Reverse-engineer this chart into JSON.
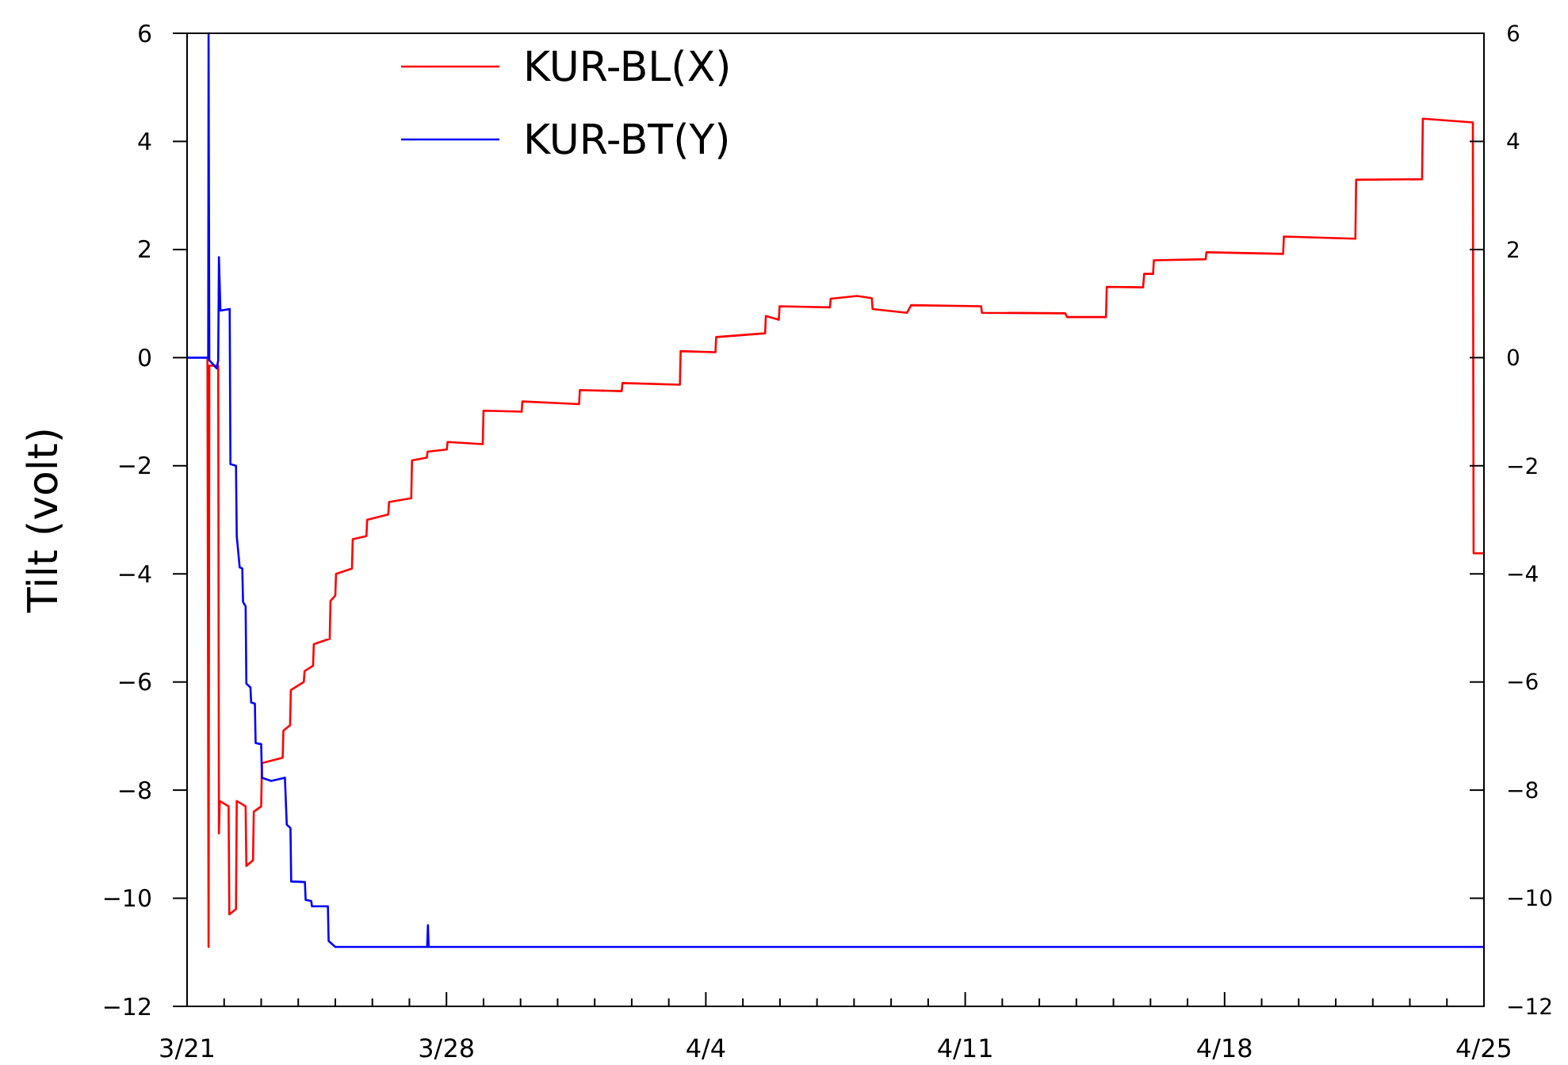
{
  "chart_data": {
    "type": "line",
    "ylabel": "Tilt (volt)",
    "legend": "top left",
    "grid": false,
    "marker": "none",
    "line_style": "solid",
    "xlim": [
      "--03-21",
      "--04-25"
    ],
    "ylim": [
      -12,
      6
    ],
    "y2lim": [
      -12,
      6
    ],
    "xticks": [
      {
        "value": "--03-21",
        "label": "3/21"
      },
      {
        "value": "--03-22",
        "label": null
      },
      {
        "value": "--03-23",
        "label": null
      },
      {
        "value": "--03-24",
        "label": null
      },
      {
        "value": "--03-25",
        "label": null
      },
      {
        "value": "--03-26",
        "label": null
      },
      {
        "value": "--03-27",
        "label": null
      },
      {
        "value": "--03-28",
        "label": "3/28"
      },
      {
        "value": "--03-29",
        "label": null
      },
      {
        "value": "--03-30",
        "label": null
      },
      {
        "value": "--03-31",
        "label": null
      },
      {
        "value": "--04-01",
        "label": null
      },
      {
        "value": "--04-02",
        "label": null
      },
      {
        "value": "--04-03",
        "label": null
      },
      {
        "value": "--04-04",
        "label": "4/4"
      },
      {
        "value": "--04-05",
        "label": null
      },
      {
        "value": "--04-06",
        "label": null
      },
      {
        "value": "--04-07",
        "label": null
      },
      {
        "value": "--04-08",
        "label": null
      },
      {
        "value": "--04-09",
        "label": null
      },
      {
        "value": "--04-10",
        "label": null
      },
      {
        "value": "--04-11",
        "label": "4/11"
      },
      {
        "value": "--04-12",
        "label": null
      },
      {
        "value": "--04-13",
        "label": null
      },
      {
        "value": "--04-14",
        "label": null
      },
      {
        "value": "--04-15",
        "label": null
      },
      {
        "value": "--04-16",
        "label": null
      },
      {
        "value": "--04-17",
        "label": null
      },
      {
        "value": "--04-18",
        "label": "4/18"
      },
      {
        "value": "--04-19",
        "label": null
      },
      {
        "value": "--04-20",
        "label": null
      },
      {
        "value": "--04-21",
        "label": null
      },
      {
        "value": "--04-22",
        "label": null
      },
      {
        "value": "--04-23",
        "label": null
      },
      {
        "value": "--04-24",
        "label": null
      },
      {
        "value": "--04-25",
        "label": "4/25"
      }
    ],
    "yticks": [
      -12,
      -10,
      -8,
      -6,
      -4,
      -2,
      0,
      2,
      4,
      6
    ],
    "y2ticks": [
      -12,
      -10,
      -8,
      -6,
      -4,
      -2,
      0,
      2,
      4,
      6
    ],
    "series": [
      {
        "name": "KUR-BL(X)",
        "color": "#ff0000",
        "x": [
          "--03-21T13:12",
          "--03-21T13:55",
          "--03-21T14:24",
          "--03-21T20:10",
          "--03-21T20:38",
          "--03-21T21:07",
          "--03-22T02:53",
          "--03-22T03:22",
          "--03-22T07:41",
          "--03-22T08:10",
          "--03-22T13:55",
          "--03-22T14:24",
          "--03-22T18:43",
          "--03-22T19:12",
          "--03-23T00:00",
          "--03-23T00:29",
          "--03-23T13:55",
          "--03-23T14:24",
          "--03-23T18:43",
          "--03-23T19:12",
          "--03-24T03:36",
          "--03-24T04:05",
          "--03-24T09:36",
          "--03-24T10:05",
          "--03-24T20:24",
          "--03-24T20:53",
          "--03-25T00:00",
          "--03-25T00:29",
          "--03-25T10:48",
          "--03-25T11:17",
          "--03-25T20:10",
          "--03-25T20:38",
          "--03-26T10:19",
          "--03-26T10:48",
          "--03-27T01:12",
          "--03-27T01:41",
          "--03-27T11:17",
          "--03-27T11:46",
          "--03-28T00:14",
          "--03-28T00:43",
          "--03-28T23:31",
          "--03-29T00:00",
          "--03-30T00:43",
          "--03-30T01:12",
          "--03-31T13:55",
          "--03-31T14:24",
          "--04-01T17:31",
          "--04-01T18:00",
          "--04-03T07:12",
          "--04-03T07:41",
          "--04-04T06:14",
          "--04-04T06:43",
          "--04-05T14:24",
          "--04-05T14:53",
          "--04-05T23:17",
          "--04-05T23:46",
          "--04-07T08:24",
          "--04-07T08:53",
          "--04-08T01:55",
          "--04-08T11:31",
          "--04-08T12:00",
          "--04-09T10:19",
          "--04-09T12:58",
          "--04-11T10:19",
          "--04-11T10:48",
          "--04-13T16:48",
          "--04-13T18:00",
          "--04-14T19:12",
          "--04-14T19:41",
          "--04-15T19:12",
          "--04-15T19:55",
          "--04-16T01:41",
          "--04-16T02:10",
          "--04-17T11:46",
          "--04-17T12:14",
          "--04-19T13:55",
          "--04-19T14:24",
          "--04-21T12:43",
          "--04-21T13:12",
          "--04-23T07:55",
          "--04-23T08:24",
          "--04-24T16:48",
          "--04-24T17:17",
          "--04-25T00:00"
        ],
        "values": [
          0,
          -10.9,
          -0.15,
          -0.15,
          -8.8,
          -8.2,
          -8.3,
          -10.3,
          -10.2,
          -8.2,
          -8.3,
          -9.4,
          -9.3,
          -8.4,
          -8.3,
          -7.5,
          -7.4,
          -6.9,
          -6.8,
          -6.15,
          -6.0,
          -5.8,
          -5.7,
          -5.3,
          -5.2,
          -4.5,
          -4.4,
          -4.0,
          -3.9,
          -3.36,
          -3.3,
          -3.0,
          -2.9,
          -2.67,
          -2.6,
          -1.9,
          -1.85,
          -1.74,
          -1.7,
          -1.56,
          -1.6,
          -0.98,
          -1.0,
          -0.81,
          -0.86,
          -0.6,
          -0.62,
          -0.47,
          -0.5,
          0.12,
          0.1,
          0.38,
          0.45,
          0.77,
          0.7,
          0.95,
          0.93,
          1.09,
          1.14,
          1.1,
          0.9,
          0.83,
          0.97,
          0.95,
          0.83,
          0.82,
          0.75,
          0.75,
          1.31,
          1.3,
          1.55,
          1.55,
          1.8,
          1.82,
          1.95,
          1.92,
          2.24,
          2.2,
          3.29,
          3.3,
          4.42,
          4.35,
          -3.62,
          -3.62
        ]
      },
      {
        "name": "KUR-BT(Y)",
        "color": "#0000ff",
        "x": [
          "--03-21T00:00",
          "--03-21T13:41",
          "--03-21T13:55",
          "--03-21T14:24",
          "--03-21T19:12",
          "--03-21T20:10",
          "--03-21T20:38",
          "--03-21T21:36",
          "--03-22T03:36",
          "--03-22T04:05",
          "--03-22T07:41",
          "--03-22T08:10",
          "--03-22T10:05",
          "--03-22T11:46",
          "--03-22T12:14",
          "--03-22T13:55",
          "--03-22T14:24",
          "--03-22T17:02",
          "--03-22T17:31",
          "--03-22T19:55",
          "--03-22T20:24",
          "--03-23T00:00",
          "--03-23T00:29",
          "--03-23T06:29",
          "--03-23T15:22",
          "--03-23T16:34",
          "--03-23T18:58",
          "--03-23T19:26",
          "--03-24T04:19",
          "--03-24T04:48",
          "--03-24T08:24",
          "--03-24T08:53",
          "--03-24T19:12",
          "--03-24T19:41",
          "--03-25T00:00",
          "--03-27T11:31",
          "--03-27T12:00",
          "--03-27T12:29",
          "--04-25T00:00"
        ],
        "values": [
          0,
          0,
          6,
          -0.05,
          -0.2,
          -0.05,
          1.86,
          0.87,
          0.9,
          -1.97,
          -2.0,
          -3.3,
          -3.88,
          -3.9,
          -4.52,
          -4.6,
          -6.03,
          -6.1,
          -6.38,
          -6.4,
          -7.13,
          -7.15,
          -7.77,
          -7.83,
          -7.77,
          -8.64,
          -8.7,
          -9.69,
          -9.7,
          -10.03,
          -10.05,
          -10.15,
          -10.15,
          -10.79,
          -10.9,
          -10.9,
          -10.5,
          -10.9,
          -10.9
        ]
      }
    ]
  }
}
